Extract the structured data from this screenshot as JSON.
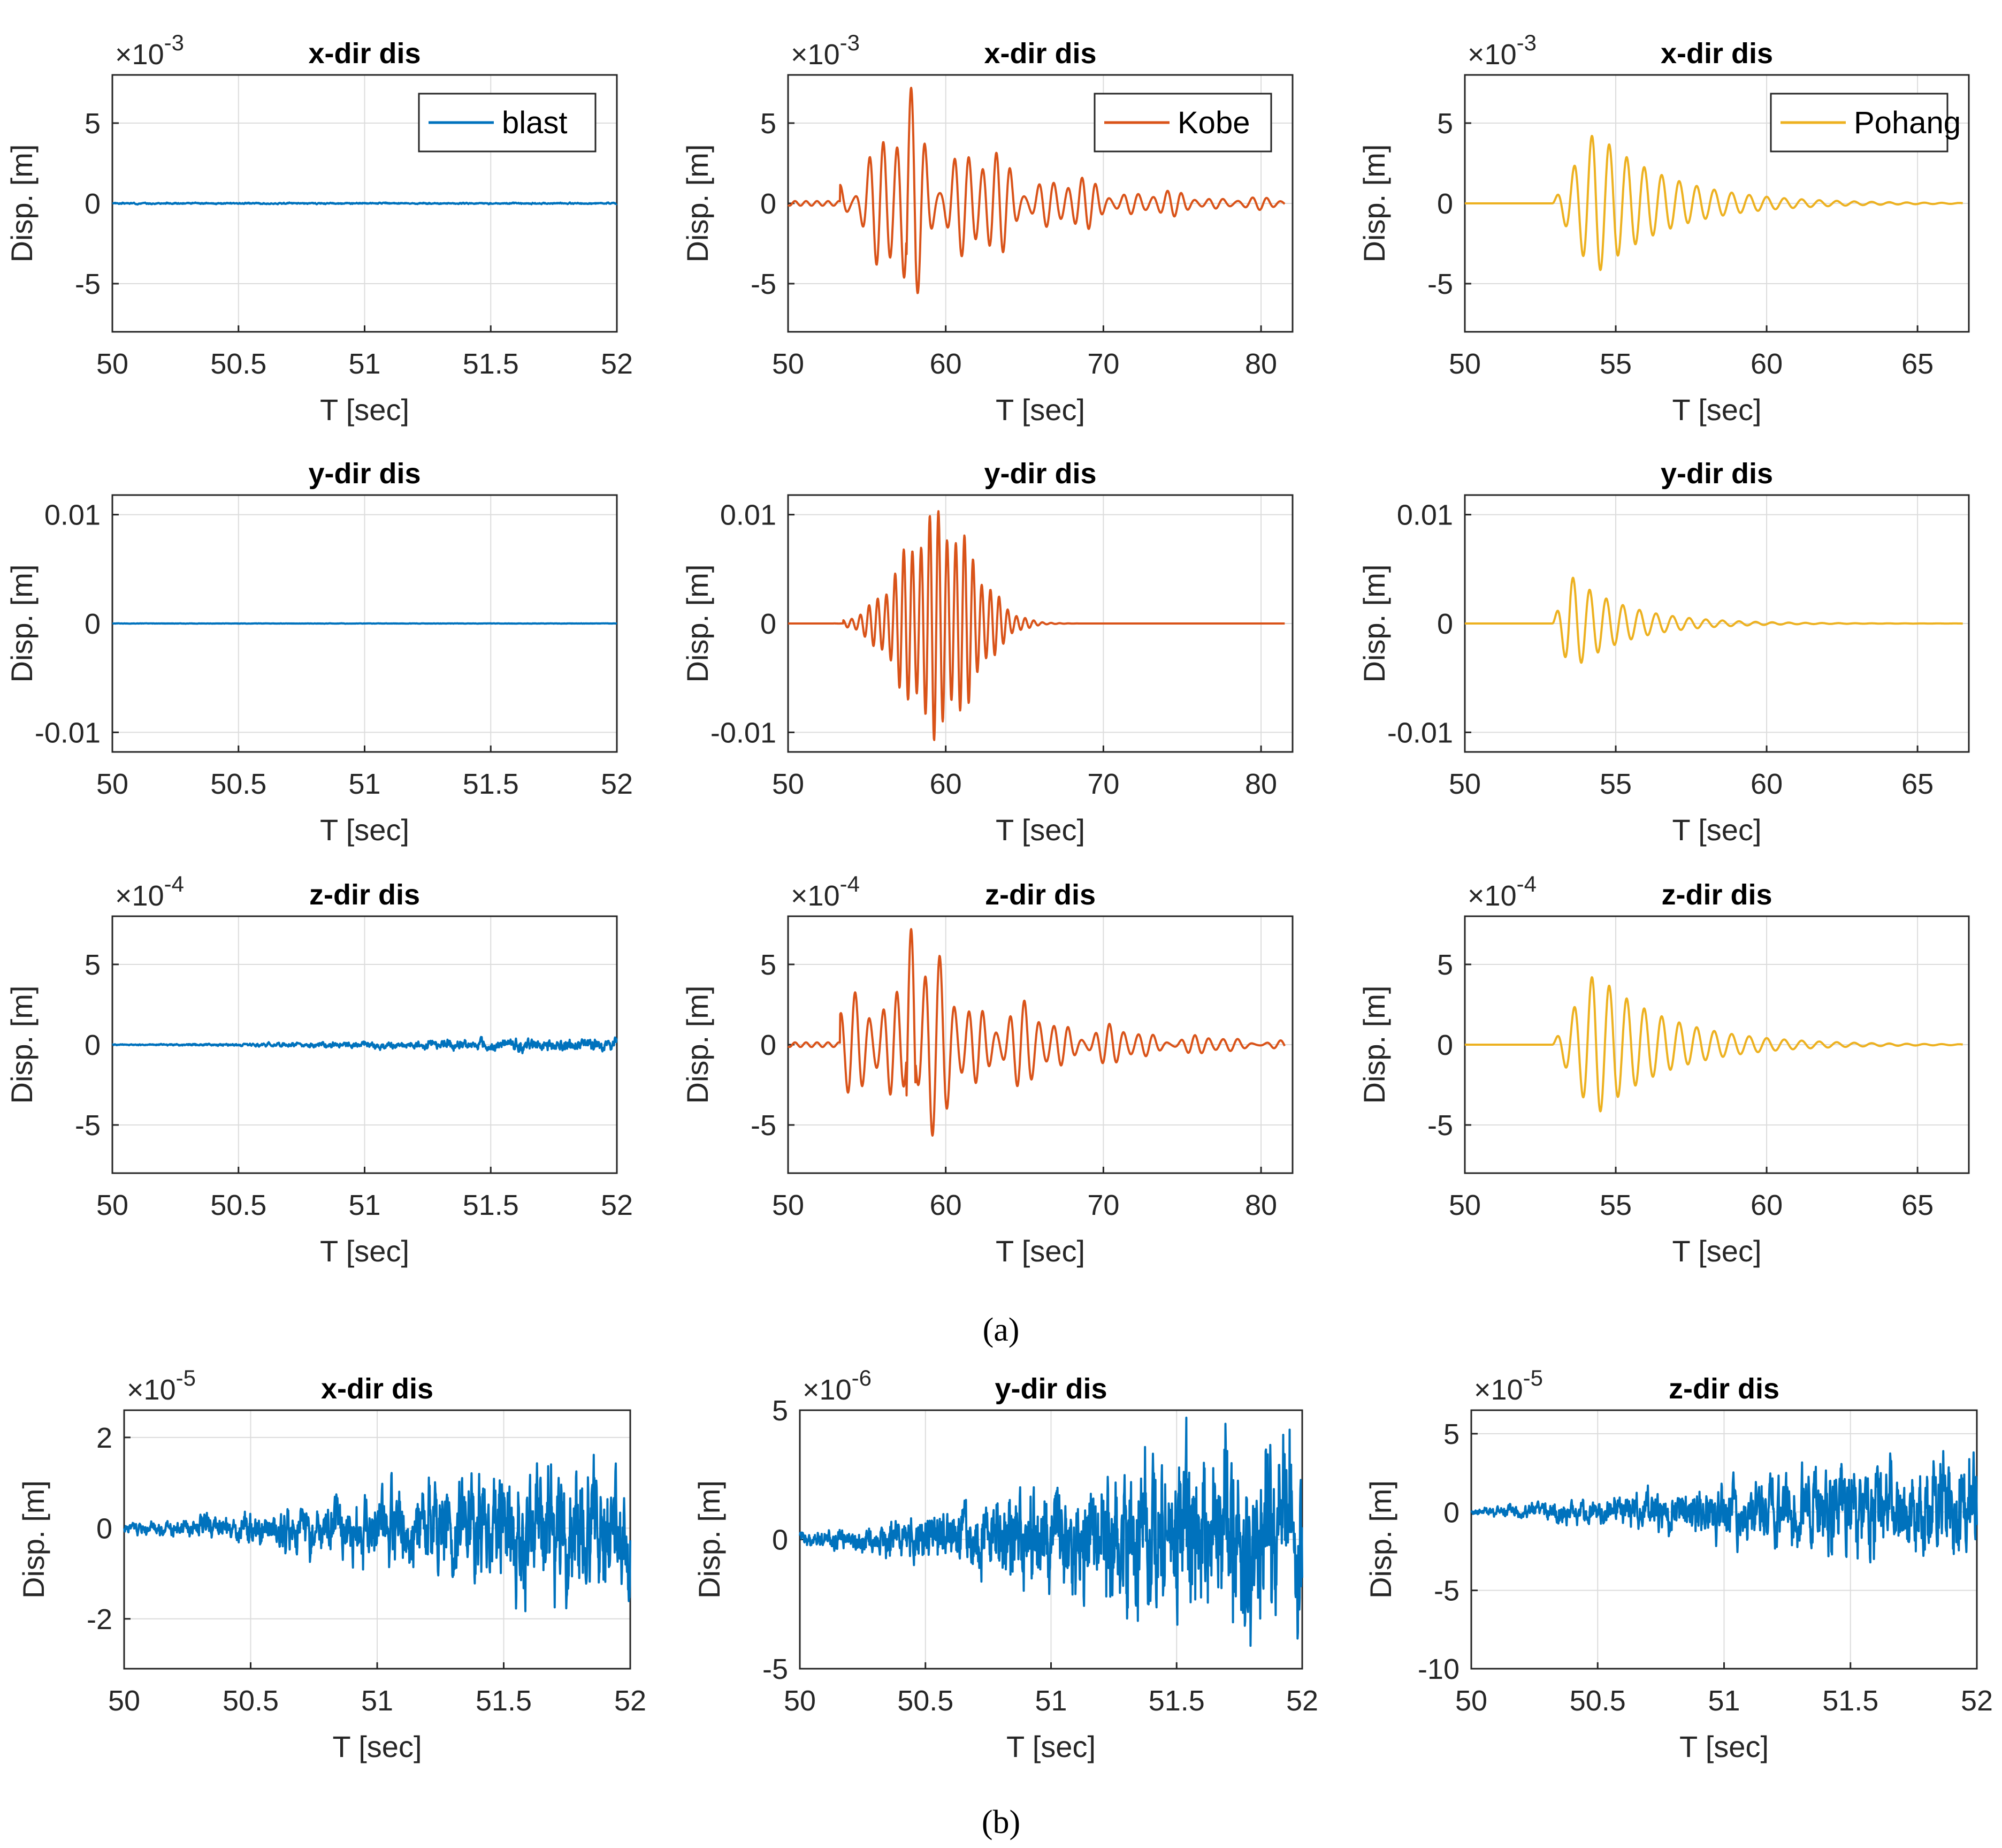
{
  "figure": {
    "caption_a": "(a)",
    "caption_b": "(b)"
  },
  "colors": {
    "blast": "#0072BD",
    "Kobe": "#D95319",
    "Pohang": "#EDB120"
  },
  "chart_data": [
    {
      "id": "a-blast-x",
      "type": "line",
      "series_name": "blast",
      "color": "#0072BD",
      "title": "x-dir dis",
      "xlabel": "T [sec]",
      "ylabel": "Disp. [m]",
      "xlim": [
        50,
        52
      ],
      "ylim": [
        -0.008,
        0.008
      ],
      "xticks": [
        50,
        50.5,
        51,
        51.5,
        52
      ],
      "xtick_labels": [
        "50",
        "50.5",
        "51",
        "51.5",
        "52"
      ],
      "yticks": [
        -0.005,
        0,
        0.005
      ],
      "ytick_labels": [
        "-5",
        "0",
        "5"
      ],
      "exponent": "-3",
      "legend": "blast",
      "legend_position": "top-right",
      "waveform": {
        "kind": "noise",
        "t0": 50,
        "t1": 52,
        "amp": 7e-05,
        "seed": 3
      }
    },
    {
      "id": "a-kobe-x",
      "type": "line",
      "series_name": "Kobe",
      "color": "#D95319",
      "title": "x-dir dis",
      "xlabel": "T [sec]",
      "ylabel": "Disp. [m]",
      "xlim": [
        50,
        82
      ],
      "ylim": [
        -0.008,
        0.008
      ],
      "xticks": [
        50,
        60,
        70,
        80
      ],
      "xtick_labels": [
        "50",
        "60",
        "70",
        "80"
      ],
      "yticks": [
        -0.005,
        0,
        0.005
      ],
      "ytick_labels": [
        "-5",
        "0",
        "5"
      ],
      "exponent": "-3",
      "legend": "Kobe",
      "legend_position": "top-right",
      "waveform": {
        "kind": "quake",
        "t0": 50,
        "t1": 81.5,
        "start": 53.3,
        "peak": 57.8,
        "amp": 0.0072,
        "period": 0.9,
        "decay": 0.13,
        "seed": 7
      }
    },
    {
      "id": "a-pohang-x",
      "type": "line",
      "series_name": "Pohang",
      "color": "#EDB120",
      "title": "x-dir dis",
      "xlabel": "T [sec]",
      "ylabel": "Disp. [m]",
      "xlim": [
        50,
        66.7
      ],
      "ylim": [
        -0.008,
        0.008
      ],
      "xticks": [
        50,
        55,
        60,
        65
      ],
      "xtick_labels": [
        "50",
        "55",
        "60",
        "65"
      ],
      "yticks": [
        -0.005,
        0,
        0.005
      ],
      "ytick_labels": [
        "-5",
        "0",
        "5"
      ],
      "exponent": "-3",
      "legend": "Pohang",
      "legend_position": "top-right",
      "waveform": {
        "kind": "sine",
        "t0": 50,
        "t1": 66.5,
        "start": 52.9,
        "peak": 54.3,
        "amp": 0.0045,
        "period": 0.58,
        "decay": 0.42,
        "seed": 11
      }
    },
    {
      "id": "a-blast-y",
      "type": "line",
      "series_name": "blast",
      "color": "#0072BD",
      "title": "y-dir dis",
      "xlabel": "T [sec]",
      "ylabel": "Disp. [m]",
      "xlim": [
        50,
        52
      ],
      "ylim": [
        -0.0118,
        0.0118
      ],
      "xticks": [
        50,
        50.5,
        51,
        51.5,
        52
      ],
      "xtick_labels": [
        "50",
        "50.5",
        "51",
        "51.5",
        "52"
      ],
      "yticks": [
        -0.01,
        0,
        0.01
      ],
      "ytick_labels": [
        "-0.01",
        "0",
        "0.01"
      ],
      "exponent": "",
      "legend": "",
      "waveform": {
        "kind": "noise",
        "t0": 50,
        "t1": 52,
        "amp": 3e-05,
        "seed": 5
      }
    },
    {
      "id": "a-kobe-y",
      "type": "line",
      "series_name": "Kobe",
      "color": "#D95319",
      "title": "y-dir dis",
      "xlabel": "T [sec]",
      "ylabel": "Disp. [m]",
      "xlim": [
        50,
        82
      ],
      "ylim": [
        -0.0118,
        0.0118
      ],
      "xticks": [
        50,
        60,
        70,
        80
      ],
      "xtick_labels": [
        "50",
        "60",
        "70",
        "80"
      ],
      "yticks": [
        -0.01,
        0,
        0.01
      ],
      "ytick_labels": [
        "-0.01",
        "0",
        "0.01"
      ],
      "exponent": "",
      "legend": "",
      "waveform": {
        "kind": "bell",
        "t0": 50,
        "t1": 81.5,
        "start": 53.5,
        "peak": 59.5,
        "amp": 0.0108,
        "period": 0.55,
        "width": 3.2,
        "seed": 13
      }
    },
    {
      "id": "a-pohang-y",
      "type": "line",
      "series_name": "Pohang",
      "color": "#EDB120",
      "title": "y-dir dis",
      "xlabel": "T [sec]",
      "ylabel": "Disp. [m]",
      "xlim": [
        50,
        66.7
      ],
      "ylim": [
        -0.0118,
        0.0118
      ],
      "xticks": [
        50,
        55,
        60,
        65
      ],
      "xtick_labels": [
        "50",
        "55",
        "60",
        "65"
      ],
      "yticks": [
        -0.01,
        0,
        0.01
      ],
      "ytick_labels": [
        "-0.01",
        "0",
        "0.01"
      ],
      "exponent": "",
      "legend": "",
      "waveform": {
        "kind": "sine",
        "t0": 50,
        "t1": 66.5,
        "start": 52.9,
        "peak": 53.5,
        "amp": 0.0044,
        "period": 0.55,
        "decay": 0.55,
        "seed": 17
      }
    },
    {
      "id": "a-blast-z",
      "type": "line",
      "series_name": "blast",
      "color": "#0072BD",
      "title": "z-dir dis",
      "xlabel": "T [sec]",
      "ylabel": "Disp. [m]",
      "xlim": [
        50,
        52
      ],
      "ylim": [
        -0.0008,
        0.0008
      ],
      "xticks": [
        50,
        50.5,
        51,
        51.5,
        52
      ],
      "xtick_labels": [
        "50",
        "50.5",
        "51",
        "51.5",
        "52"
      ],
      "yticks": [
        -0.0005,
        0,
        0.0005
      ],
      "ytick_labels": [
        "-5",
        "0",
        "5"
      ],
      "exponent": "-4",
      "legend": "",
      "waveform": {
        "kind": "noise",
        "t0": 50,
        "t1": 52,
        "amp": 6e-05,
        "grow": true,
        "seed": 19
      }
    },
    {
      "id": "a-kobe-z",
      "type": "line",
      "series_name": "Kobe",
      "color": "#D95319",
      "title": "z-dir dis",
      "xlabel": "T [sec]",
      "ylabel": "Disp. [m]",
      "xlim": [
        50,
        82
      ],
      "ylim": [
        -0.0008,
        0.0008
      ],
      "xticks": [
        50,
        60,
        70,
        80
      ],
      "xtick_labels": [
        "50",
        "60",
        "70",
        "80"
      ],
      "yticks": [
        -0.0005,
        0,
        0.0005
      ],
      "ytick_labels": [
        "-5",
        "0",
        "5"
      ],
      "exponent": "-4",
      "legend": "",
      "waveform": {
        "kind": "quake",
        "t0": 50,
        "t1": 81.5,
        "start": 53.3,
        "peak": 57.8,
        "amp": 0.00072,
        "period": 0.9,
        "decay": 0.13,
        "seed": 23
      }
    },
    {
      "id": "a-pohang-z",
      "type": "line",
      "series_name": "Pohang",
      "color": "#EDB120",
      "title": "z-dir dis",
      "xlabel": "T [sec]",
      "ylabel": "Disp. [m]",
      "xlim": [
        50,
        66.7
      ],
      "ylim": [
        -0.0008,
        0.0008
      ],
      "xticks": [
        50,
        55,
        60,
        65
      ],
      "xtick_labels": [
        "50",
        "55",
        "60",
        "65"
      ],
      "yticks": [
        -0.0005,
        0,
        0.0005
      ],
      "ytick_labels": [
        "-5",
        "0",
        "5"
      ],
      "exponent": "-4",
      "legend": "",
      "waveform": {
        "kind": "sine",
        "t0": 50,
        "t1": 66.5,
        "start": 52.9,
        "peak": 54.3,
        "amp": 0.00045,
        "period": 0.58,
        "decay": 0.42,
        "seed": 29
      }
    },
    {
      "id": "b-blast-x",
      "type": "line",
      "series_name": "blast",
      "color": "#0072BD",
      "title": "x-dir dis",
      "xlabel": "T [sec]",
      "ylabel": "Disp. [m]",
      "xlim": [
        50,
        52
      ],
      "ylim": [
        -3.1e-05,
        2.6e-05
      ],
      "xticks": [
        50,
        50.5,
        51,
        51.5,
        52
      ],
      "xtick_labels": [
        "50",
        "50.5",
        "51",
        "51.5",
        "52"
      ],
      "yticks": [
        -2e-05,
        0,
        2e-05
      ],
      "ytick_labels": [
        "-2",
        "0",
        "2"
      ],
      "exponent": "-5",
      "legend": "",
      "waveform": {
        "kind": "noise",
        "t0": 50,
        "t1": 52,
        "amp": 2.4e-05,
        "grow": true,
        "seed": 31
      }
    },
    {
      "id": "b-blast-y",
      "type": "line",
      "series_name": "blast",
      "color": "#0072BD",
      "title": "y-dir dis",
      "xlabel": "T [sec]",
      "ylabel": "Disp. [m]",
      "xlim": [
        50,
        52
      ],
      "ylim": [
        -5e-06,
        5e-06
      ],
      "xticks": [
        50,
        50.5,
        51,
        51.5,
        52
      ],
      "xtick_labels": [
        "50",
        "50.5",
        "51",
        "51.5",
        "52"
      ],
      "yticks": [
        -5e-06,
        0,
        5e-06
      ],
      "ytick_labels": [
        "-5",
        "0",
        "5"
      ],
      "exponent": "-6",
      "legend": "",
      "waveform": {
        "kind": "noise",
        "t0": 50,
        "t1": 52,
        "amp": 4.6e-06,
        "grow": true,
        "dense": true,
        "seed": 37
      }
    },
    {
      "id": "b-blast-z",
      "type": "line",
      "series_name": "blast",
      "color": "#0072BD",
      "title": "z-dir dis",
      "xlabel": "T [sec]",
      "ylabel": "Disp. [m]",
      "xlim": [
        50,
        52
      ],
      "ylim": [
        -0.0001,
        6.5e-05
      ],
      "xticks": [
        50,
        50.5,
        51,
        51.5,
        52
      ],
      "xtick_labels": [
        "50",
        "50.5",
        "51",
        "51.5",
        "52"
      ],
      "yticks": [
        -0.0001,
        -5e-05,
        0,
        5e-05
      ],
      "ytick_labels": [
        "-10",
        "-5",
        "0",
        "5"
      ],
      "exponent": "-5",
      "legend": "",
      "waveform": {
        "kind": "noise",
        "t0": 50,
        "t1": 52,
        "amp": 5.5e-05,
        "grow": true,
        "seed": 41
      }
    }
  ]
}
